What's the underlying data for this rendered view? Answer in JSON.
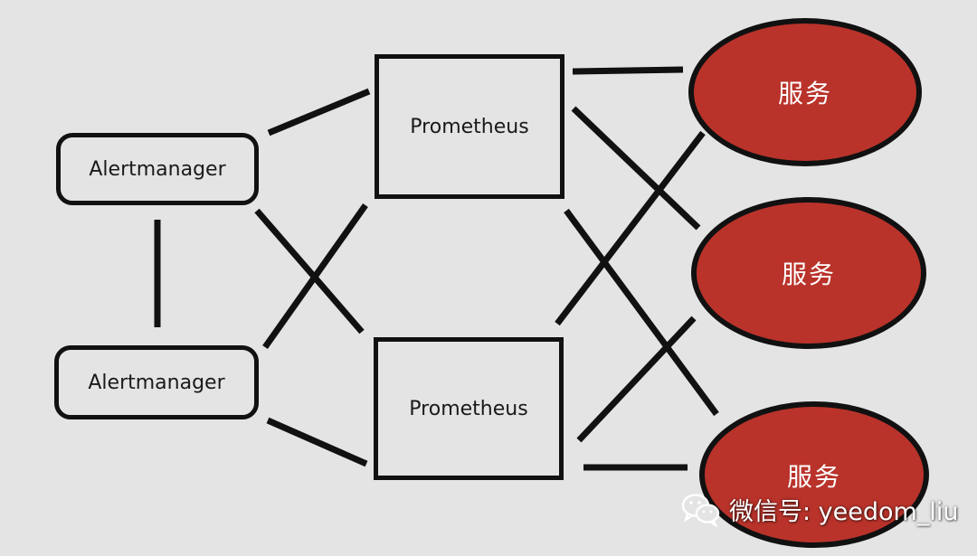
{
  "diagram": {
    "alertmanagers": [
      {
        "label": "Alertmanager"
      },
      {
        "label": "Alertmanager"
      }
    ],
    "prometheus_servers": [
      {
        "label": "Prometheus"
      },
      {
        "label": "Prometheus"
      }
    ],
    "services": [
      {
        "label": "服务"
      },
      {
        "label": "服务"
      },
      {
        "label": "服务"
      }
    ]
  },
  "watermark": {
    "text": "微信号: yeedom_liu",
    "icon": "wechat-icon"
  },
  "colors": {
    "background": "#e4e4e4",
    "stroke": "#111111",
    "service_fill": "#b9332b",
    "service_text": "#ffffff"
  }
}
